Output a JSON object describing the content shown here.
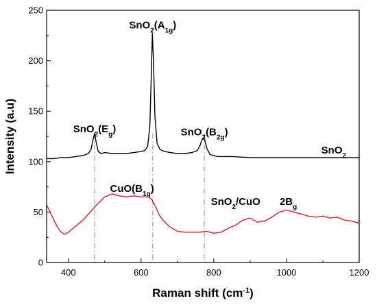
{
  "chart_data": {
    "type": "line",
    "xlabel": "Raman shift (cm",
    "xlabel_sup": "-1",
    "xlabel_end": ")",
    "ylabel": "Intensity (a.u)",
    "xlim": [
      340,
      1200
    ],
    "ylim": [
      0,
      250
    ],
    "xticks": [
      400,
      600,
      800,
      1000,
      1200
    ],
    "yticks": [
      0,
      50,
      100,
      150,
      200,
      250
    ],
    "grid": false,
    "series": [
      {
        "name": "SnO2",
        "color": "#000000",
        "x": [
          340,
          360,
          380,
          400,
          420,
          440,
          455,
          462,
          468,
          472,
          476,
          482,
          490,
          500,
          520,
          540,
          560,
          580,
          600,
          610,
          618,
          624,
          628,
          631,
          634,
          638,
          644,
          652,
          665,
          680,
          700,
          720,
          740,
          755,
          762,
          768,
          772,
          776,
          782,
          790,
          810,
          850,
          900,
          950,
          1000,
          1050,
          1100,
          1150,
          1200
        ],
        "y": [
          103,
          103,
          104,
          104,
          105,
          106,
          108,
          112,
          122,
          128,
          120,
          110,
          108,
          109,
          108,
          108,
          108,
          109,
          110,
          111,
          115,
          135,
          185,
          227,
          200,
          145,
          118,
          112,
          110,
          109,
          108,
          108,
          109,
          111,
          116,
          122,
          124,
          120,
          112,
          107,
          105,
          105,
          104,
          104,
          104,
          104,
          104,
          104,
          104
        ]
      },
      {
        "name": "SnO2/CuO",
        "color": "#e8191f",
        "x": [
          340,
          350,
          360,
          370,
          380,
          390,
          400,
          420,
          440,
          460,
          480,
          500,
          520,
          540,
          560,
          580,
          600,
          620,
          630,
          640,
          650,
          660,
          680,
          700,
          720,
          740,
          760,
          780,
          800,
          820,
          840,
          860,
          880,
          900,
          920,
          940,
          960,
          980,
          1000,
          1020,
          1040,
          1060,
          1080,
          1100,
          1120,
          1140,
          1160,
          1180,
          1200
        ],
        "y": [
          57,
          50,
          42,
          35,
          30,
          28,
          30,
          36,
          42,
          50,
          58,
          65,
          68,
          66,
          65,
          66,
          65,
          65,
          62,
          55,
          47,
          42,
          35,
          31,
          30,
          30,
          30,
          31,
          29,
          30,
          34,
          37,
          42,
          44,
          40,
          41,
          45,
          50,
          52,
          50,
          48,
          46,
          45,
          46,
          44,
          45,
          42,
          41,
          39
        ]
      }
    ],
    "reference_lines_x": [
      472,
      632,
      774
    ],
    "annotations": [
      {
        "text": "SnO",
        "sub1": "2",
        "mid": "(E",
        "sub2": "g",
        "end": ")",
        "x": 472,
        "y": 129
      },
      {
        "text": "SnO",
        "sub1": "2",
        "mid": "(A",
        "sub2": "1g",
        "end": ")",
        "x": 632,
        "y": 232
      },
      {
        "text": "SnO",
        "sub1": "2",
        "mid": "(B",
        "sub2": "2g",
        "end": ")",
        "x": 774,
        "y": 126
      },
      {
        "text": "SnO",
        "sub1": "2",
        "mid": "",
        "sub2": "",
        "end": "",
        "x": 1130,
        "y": 108
      },
      {
        "text": "CuO(B",
        "sub1": "1g",
        "mid": ")",
        "sub2": "",
        "end": "",
        "x": 575,
        "y": 70
      },
      {
        "text": "SnO",
        "sub1": "2",
        "mid": "/CuO",
        "sub2": "",
        "end": "",
        "x": 860,
        "y": 57
      },
      {
        "text": "2B",
        "sub1": "g",
        "mid": "",
        "sub2": "",
        "end": "",
        "x": 1005,
        "y": 57
      }
    ]
  }
}
